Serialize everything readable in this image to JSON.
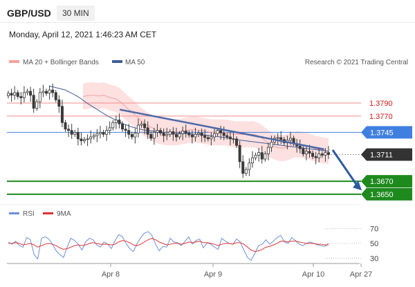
{
  "header": {
    "symbol": "GBP/USD",
    "timeframe": "30 MIN",
    "datetime": "Monday, April 12, 2021 1:46:23 AM CET"
  },
  "legend": {
    "ma20_bb": "MA 20 + Bollinger Bands",
    "ma50": "MA 50",
    "rsi": "RSI",
    "rsi_ma": "9MA",
    "credit": "Research © 2021 Trading Central"
  },
  "colors": {
    "candle": "#3a3a3a",
    "bollinger_fill": "#fcd5d5",
    "ma20": "#f4a0a0",
    "ma50": "#3f5c99",
    "trendline": "#4a68a8",
    "resistance": "#f28a8a",
    "pivot": "#3f7fe0",
    "support": "#1e8a1e",
    "rsi": "#6b8fd9",
    "rsi_ma": "#e03030",
    "last_price_tag": "#333333",
    "arrow": "#2c5aa0"
  },
  "chart_data": [
    {
      "type": "candlestick",
      "title": "GBP/USD 30 MIN",
      "y_range": [
        1.3634,
        1.3842
      ],
      "x_ticks": [
        "Apr 8",
        "Apr 9",
        "Apr 10",
        "Apr 27"
      ],
      "last_price": 1.3711,
      "levels": [
        {
          "label": "1.3790",
          "value": 1.379,
          "kind": "resistance"
        },
        {
          "label": "1.3770",
          "value": 1.377,
          "kind": "resistance"
        },
        {
          "label": "1.3745",
          "value": 1.3745,
          "kind": "pivot"
        },
        {
          "label": "1.3670",
          "value": 1.367,
          "kind": "support"
        },
        {
          "label": "1.3650",
          "value": 1.365,
          "kind": "support"
        }
      ],
      "close_path": [
        1.3805,
        1.3802,
        1.3806,
        1.38,
        1.3798,
        1.3806,
        1.3808,
        1.3802,
        1.3782,
        1.3792,
        1.3806,
        1.3808,
        1.3805,
        1.381,
        1.3806,
        1.3795,
        1.3785,
        1.376,
        1.375,
        1.3748,
        1.3742,
        1.3745,
        1.3735,
        1.3732,
        1.3734,
        1.3735,
        1.3738,
        1.374,
        1.3743,
        1.3745,
        1.3742,
        1.3748,
        1.3752,
        1.376,
        1.3764,
        1.3758,
        1.375,
        1.3748,
        1.3742,
        1.3738,
        1.3744,
        1.3756,
        1.3758,
        1.3752,
        1.3742,
        1.3736,
        1.3745,
        1.3748,
        1.3744,
        1.374,
        1.3742,
        1.3746,
        1.3742,
        1.3738,
        1.3743,
        1.3747,
        1.3744,
        1.3741,
        1.3738,
        1.3742,
        1.3744,
        1.374,
        1.3737,
        1.3735,
        1.3738,
        1.3743,
        1.3748,
        1.3744,
        1.374,
        1.3738,
        1.3735,
        1.3735,
        1.3725,
        1.37,
        1.3682,
        1.3688,
        1.3698,
        1.3706,
        1.371,
        1.3714,
        1.3704,
        1.3712,
        1.3722,
        1.373,
        1.3736,
        1.3737,
        1.3734,
        1.3729,
        1.3733,
        1.3736,
        1.3728,
        1.3724,
        1.372,
        1.3712,
        1.3716,
        1.3713,
        1.3708,
        1.3706,
        1.3712,
        1.371,
        1.3714,
        1.3711
      ],
      "ma20": [
        1.38,
        1.3801,
        1.3802,
        1.3802,
        1.3801,
        1.3801,
        1.3802,
        1.38,
        1.3798,
        1.3797,
        1.3795,
        1.3791,
        1.3786,
        1.3781,
        1.3777,
        1.3772,
        1.3767,
        1.3762,
        1.3758,
        1.3755,
        1.3752,
        1.3749,
        1.3747,
        1.3746,
        1.3745,
        1.3745,
        1.3745,
        1.3745,
        1.3746,
        1.3747,
        1.3748,
        1.3749,
        1.3749,
        1.3749,
        1.3748,
        1.3747,
        1.3746,
        1.3745,
        1.3745,
        1.3745,
        1.3745,
        1.3745,
        1.3744,
        1.3743,
        1.3742,
        1.3742,
        1.3742,
        1.3742,
        1.3742,
        1.3742,
        1.3741,
        1.3739,
        1.3735,
        1.3731,
        1.3727,
        1.3724,
        1.3722,
        1.3721,
        1.3721,
        1.3722,
        1.3724,
        1.3726,
        1.3727,
        1.3726,
        1.3725,
        1.3724,
        1.3722,
        1.372,
        1.3719,
        1.3718,
        1.3717,
        1.3716
      ],
      "ma50": [
        1.3816,
        1.3814,
        1.3812,
        1.381,
        1.3806,
        1.3802,
        1.3797,
        1.3791,
        1.3786,
        1.3781,
        1.3776,
        1.3771,
        1.3767,
        1.3763,
        1.3759,
        1.3756,
        1.3753,
        1.3751,
        1.3749,
        1.3748,
        1.3747,
        1.3746,
        1.3745,
        1.3745,
        1.3744,
        1.3744,
        1.3743,
        1.3743,
        1.3742,
        1.3742,
        1.3741,
        1.374,
        1.3739,
        1.3738,
        1.3737,
        1.3736,
        1.3734,
        1.3733,
        1.3732,
        1.3731,
        1.373,
        1.3729,
        1.3728,
        1.3727,
        1.3726,
        1.3725,
        1.3724,
        1.3723,
        1.3722,
        1.3721,
        1.372,
        1.3719,
        1.3718,
        1.3717,
        1.3716
      ],
      "trendline": [
        {
          "x": 0.333,
          "y": 1.378
        },
        {
          "x": 0.901,
          "y": 1.3719
        }
      ],
      "bollinger_width": 0.002
    },
    {
      "type": "line",
      "title": "RSI",
      "y_range": [
        20,
        80
      ],
      "y_ticks": [
        70,
        50,
        30
      ],
      "series": [
        {
          "name": "RSI",
          "values": [
            52,
            49,
            53,
            47,
            45,
            58,
            55,
            35,
            29,
            57,
            59,
            56,
            49,
            40,
            35,
            31,
            45,
            57,
            54,
            49,
            41,
            52,
            57,
            55,
            48,
            45,
            52,
            49,
            43,
            54,
            62,
            59,
            50,
            43,
            39,
            50,
            58,
            64,
            66,
            61,
            49,
            40,
            46,
            45,
            57,
            52,
            51,
            47,
            53,
            59,
            49,
            54,
            56,
            44,
            51,
            49,
            45,
            42,
            57,
            53,
            50,
            49,
            56,
            52,
            41,
            31,
            27,
            37,
            47,
            49,
            55,
            49,
            53,
            58,
            61,
            52,
            50,
            58,
            54,
            49,
            47,
            50,
            52,
            50,
            48,
            47,
            46,
            50
          ]
        },
        {
          "name": "9MA",
          "values": [
            50,
            50,
            51,
            50,
            48,
            49,
            50,
            48,
            45,
            47,
            49,
            50,
            49,
            47,
            44,
            42,
            43,
            45,
            47,
            48,
            47,
            48,
            50,
            51,
            50,
            49,
            49,
            49,
            48,
            49,
            52,
            54,
            53,
            51,
            48,
            47,
            49,
            52,
            55,
            57,
            55,
            52,
            50,
            48,
            49,
            50,
            50,
            49,
            50,
            52,
            51,
            52,
            53,
            51,
            51,
            50,
            49,
            47,
            49,
            50,
            50,
            49,
            51,
            51,
            49,
            45,
            41,
            39,
            40,
            42,
            45,
            46,
            48,
            50,
            53,
            53,
            52,
            53,
            53,
            52,
            51,
            50,
            50,
            50,
            49,
            49,
            48,
            48
          ]
        }
      ]
    }
  ]
}
